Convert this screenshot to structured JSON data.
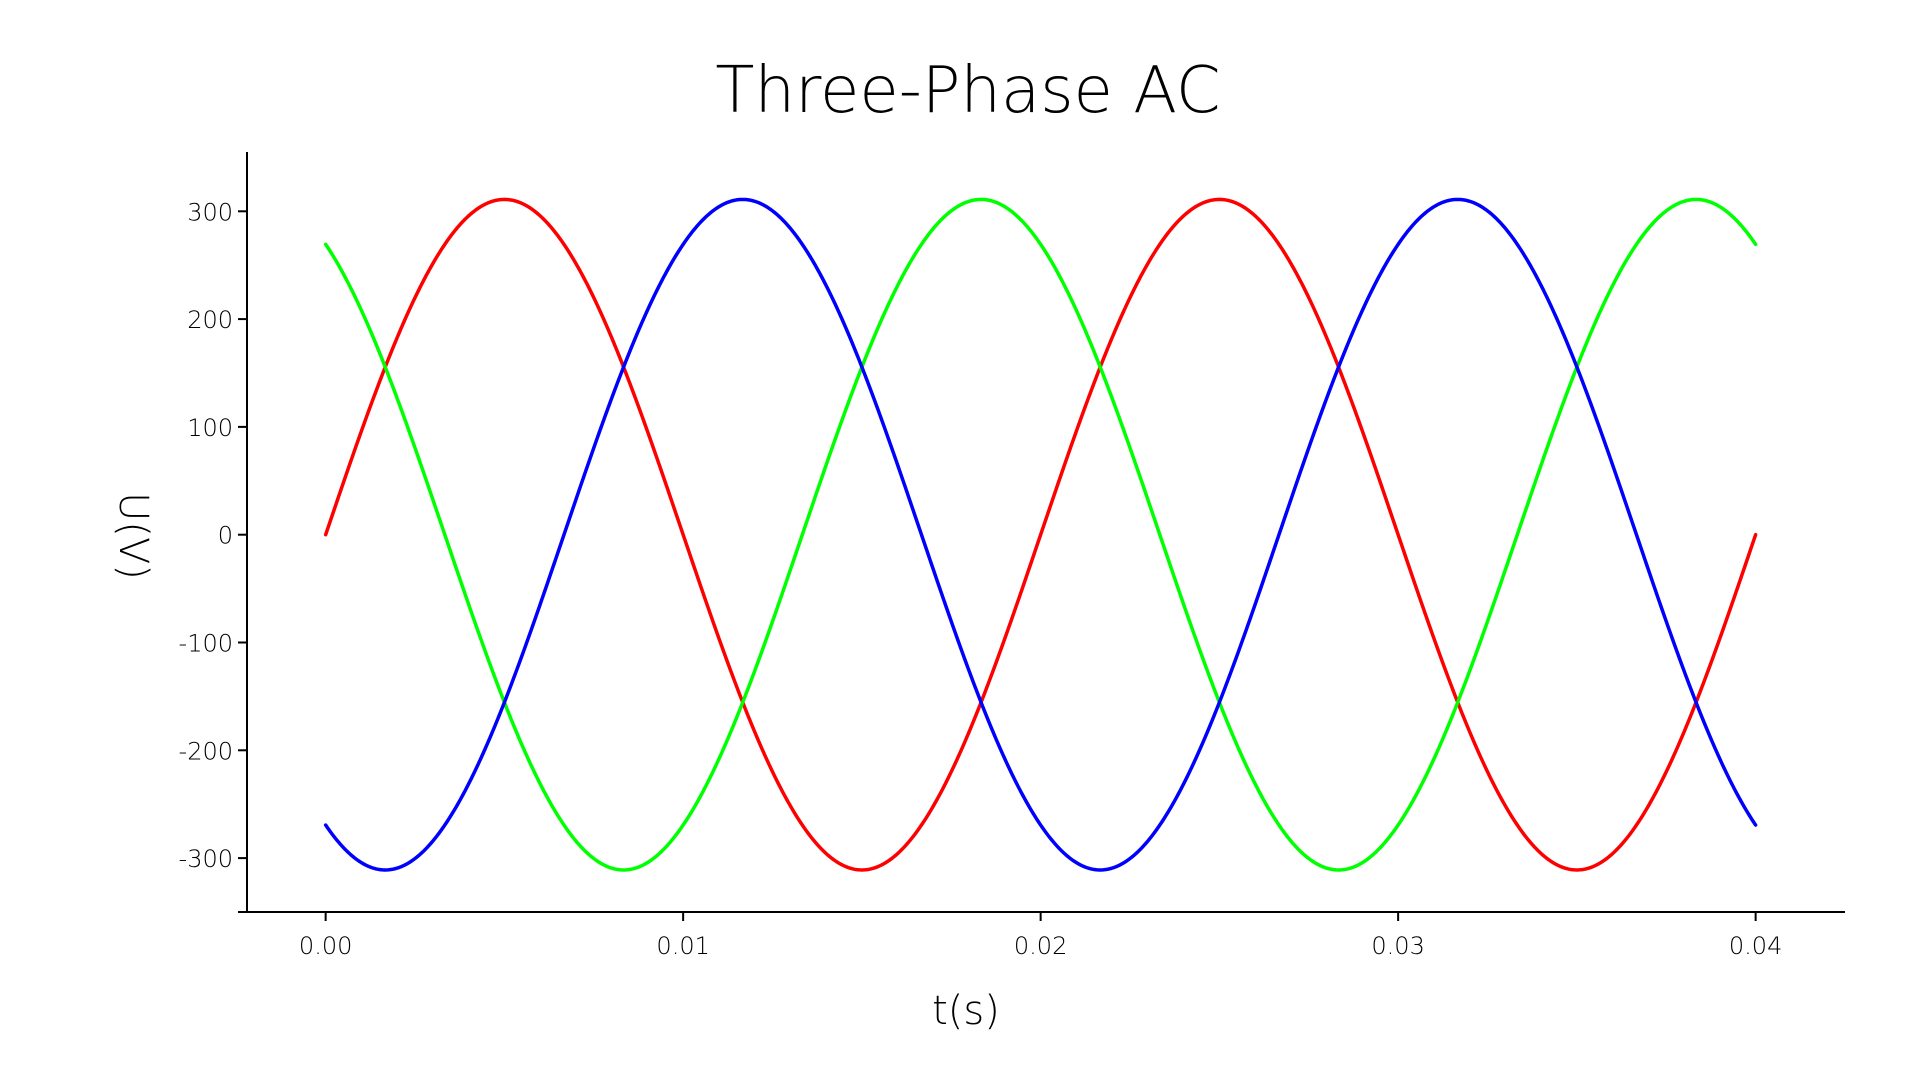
{
  "chart_data": {
    "type": "line",
    "title": "Three-Phase AC",
    "xlabel": "t(s)",
    "ylabel": "U(V)",
    "xlim": [
      -0.0022,
      0.0425
    ],
    "ylim": [
      -350,
      355
    ],
    "xticks": [
      0.0,
      0.01,
      0.02,
      0.03,
      0.04
    ],
    "xtick_labels": [
      "0.00",
      "0.01",
      "0.02",
      "0.03",
      "0.04"
    ],
    "yticks": [
      300,
      200,
      100,
      0,
      -100,
      -200,
      -300
    ],
    "ytick_labels": [
      "300",
      "200",
      "100",
      "0",
      "-100",
      "-200",
      "-300"
    ],
    "grid": false,
    "legend": "none",
    "x_start": 0.0,
    "x_end": 0.04,
    "series": [
      {
        "color": "#ff0000",
        "amplitude": 311,
        "frequency_hz": 50,
        "phase_deg": 0
      },
      {
        "color": "#00ff00",
        "amplitude": 311,
        "frequency_hz": 50,
        "phase_deg": 120
      },
      {
        "color": "#0000ff",
        "amplitude": 311,
        "frequency_hz": 50,
        "phase_deg": -120
      }
    ]
  }
}
